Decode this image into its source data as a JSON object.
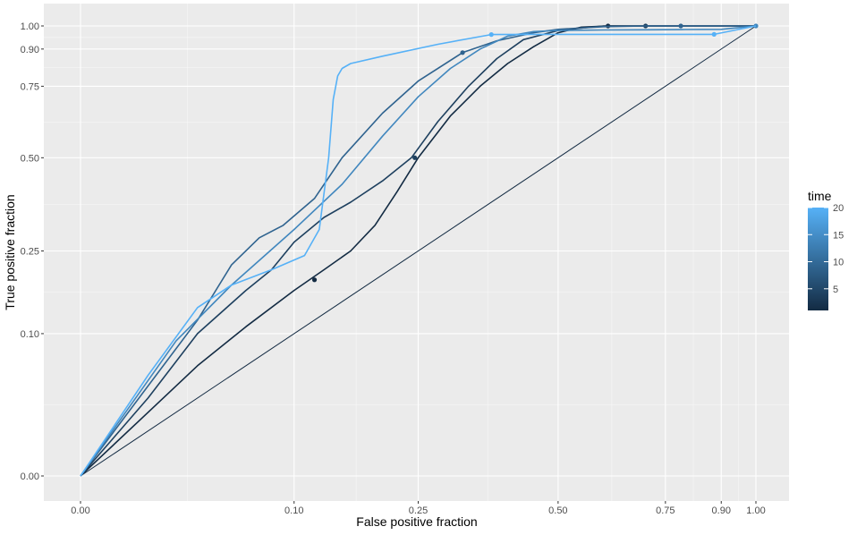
{
  "chart_data": {
    "type": "line",
    "title": "",
    "xlabel": "False positive fraction",
    "ylabel": "True positive fraction",
    "xlim": [
      0,
      1
    ],
    "ylim": [
      0,
      1
    ],
    "scale": "sqrt",
    "grid": true,
    "x_ticks": [
      {
        "value": 0.0,
        "label": "0.00"
      },
      {
        "value": 0.1,
        "label": "0.10"
      },
      {
        "value": 0.25,
        "label": "0.25"
      },
      {
        "value": 0.5,
        "label": "0.50"
      },
      {
        "value": 0.75,
        "label": "0.75"
      },
      {
        "value": 0.9,
        "label": "0.90"
      },
      {
        "value": 1.0,
        "label": "1.00"
      }
    ],
    "y_ticks": [
      {
        "value": 0.0,
        "label": "0.00"
      },
      {
        "value": 0.1,
        "label": "0.10"
      },
      {
        "value": 0.25,
        "label": "0.25"
      },
      {
        "value": 0.5,
        "label": "0.50"
      },
      {
        "value": 0.75,
        "label": "0.75"
      },
      {
        "value": 0.9,
        "label": "0.90"
      },
      {
        "value": 1.0,
        "label": "1.00"
      }
    ],
    "legend": {
      "title": "time",
      "position": "right",
      "min": 1,
      "max": 20,
      "breaks": [
        5,
        10,
        15,
        20
      ],
      "low_color": "#132B43",
      "high_color": "#56B1F7"
    },
    "series": [
      {
        "time": 1,
        "x": [
          0,
          0.01,
          0.03,
          0.06,
          0.1,
          0.13,
          0.16,
          0.19,
          0.22,
          0.25,
          0.3,
          0.35,
          0.4,
          0.45,
          0.5,
          0.55,
          0.61,
          0.7,
          0.8,
          0.9,
          1.0
        ],
        "y": [
          0,
          0.02,
          0.06,
          0.11,
          0.17,
          0.21,
          0.25,
          0.31,
          0.4,
          0.5,
          0.64,
          0.75,
          0.84,
          0.91,
          0.97,
          0.995,
          1.0,
          1.0,
          1.0,
          1.0,
          1.0
        ],
        "markers": [
          {
            "x": 0.12,
            "y": 0.19
          },
          {
            "x": 0.61,
            "y": 1.0
          }
        ]
      },
      {
        "time": 4,
        "x": [
          0,
          0.01,
          0.03,
          0.06,
          0.08,
          0.1,
          0.13,
          0.16,
          0.2,
          0.24,
          0.28,
          0.33,
          0.38,
          0.43,
          0.5,
          0.6,
          0.7,
          0.8,
          0.9,
          1.0
        ],
        "y": [
          0,
          0.03,
          0.1,
          0.17,
          0.21,
          0.27,
          0.33,
          0.37,
          0.43,
          0.5,
          0.62,
          0.75,
          0.86,
          0.94,
          0.98,
          1.0,
          1.0,
          1.0,
          1.0,
          1.0
        ],
        "markers": [
          {
            "x": 0.245,
            "y": 0.5
          },
          {
            "x": 0.7,
            "y": 1.0
          }
        ]
      },
      {
        "time": 9,
        "x": [
          0,
          0.01,
          0.03,
          0.05,
          0.07,
          0.09,
          0.12,
          0.15,
          0.2,
          0.25,
          0.32,
          0.38,
          0.45,
          0.5,
          0.6,
          0.7,
          0.8,
          1.0
        ],
        "y": [
          0,
          0.04,
          0.12,
          0.22,
          0.28,
          0.31,
          0.38,
          0.5,
          0.65,
          0.77,
          0.885,
          0.935,
          0.97,
          0.985,
          0.997,
          1.0,
          1.0,
          1.0
        ],
        "markers": [
          {
            "x": 0.32,
            "y": 0.885
          },
          {
            "x": 0.79,
            "y": 1.0
          }
        ]
      },
      {
        "time": 14,
        "x": [
          0,
          0.02,
          0.05,
          0.1,
          0.15,
          0.2,
          0.25,
          0.3,
          0.35,
          0.4,
          0.45,
          0.5,
          0.6,
          0.7,
          0.8,
          0.9,
          1.0
        ],
        "y": [
          0,
          0.09,
          0.18,
          0.3,
          0.42,
          0.57,
          0.71,
          0.82,
          0.9,
          0.955,
          0.975,
          0.98,
          0.982,
          0.983,
          0.984,
          0.985,
          1.0
        ],
        "markers": [
          {
            "x": 1.0,
            "y": 1.0
          }
        ]
      },
      {
        "time": 20,
        "x": [
          0,
          0.01,
          0.03,
          0.05,
          0.08,
          0.11,
          0.125,
          0.135,
          0.14,
          0.145,
          0.15,
          0.16,
          0.2,
          0.28,
          0.37,
          0.45,
          0.6,
          0.75,
          0.88,
          1.0
        ],
        "y": [
          0,
          0.05,
          0.14,
          0.18,
          0.21,
          0.24,
          0.3,
          0.5,
          0.7,
          0.79,
          0.82,
          0.84,
          0.87,
          0.92,
          0.962,
          0.963,
          0.963,
          0.963,
          0.963,
          1.0
        ],
        "markers": [
          {
            "x": 0.37,
            "y": 0.962
          },
          {
            "x": 0.88,
            "y": 0.963
          }
        ]
      }
    ],
    "reference_line": {
      "x": [
        0,
        1
      ],
      "y": [
        0,
        1
      ]
    }
  }
}
